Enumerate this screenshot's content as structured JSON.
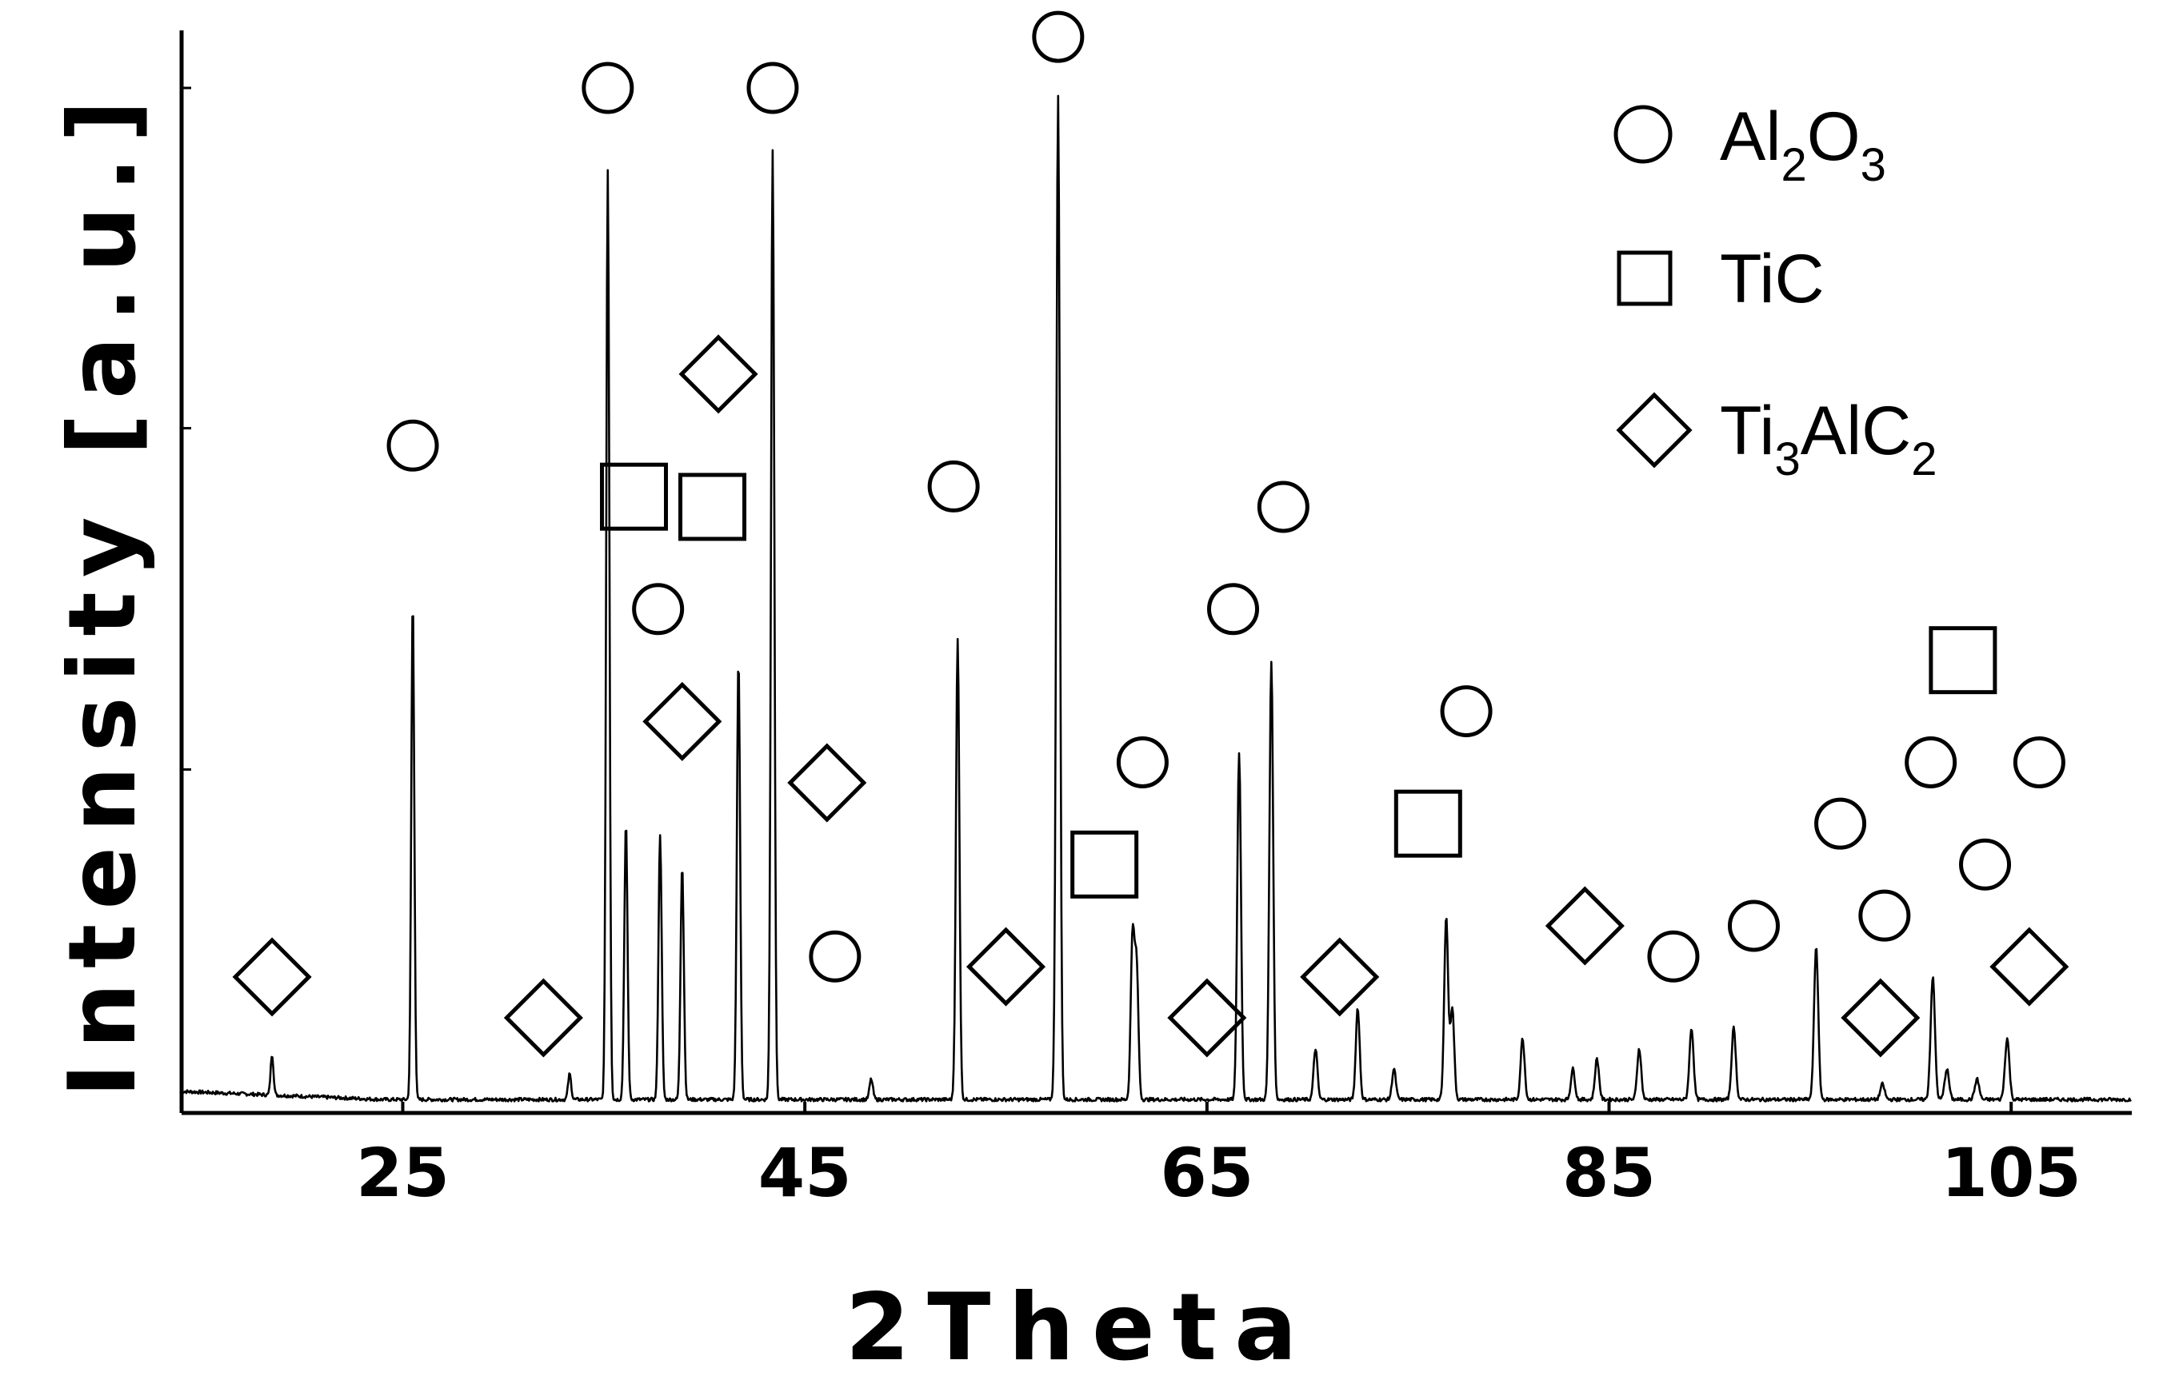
{
  "chart_data": {
    "type": "line",
    "title": "",
    "xlabel": "2Theta",
    "ylabel": "Intensity [a.u.]",
    "xlim": [
      14,
      111
    ],
    "ylim": [
      0,
      100
    ],
    "x_ticks": [
      25,
      45,
      65,
      85,
      105
    ],
    "x_tick_labels": [
      "25",
      "45",
      "65",
      "85",
      "105"
    ],
    "y_ticks": [
      0,
      33.3,
      66.7,
      100
    ],
    "y_tick_labels": [],
    "grid": false,
    "legend_position": "top-right",
    "legend": [
      {
        "symbol": "circle",
        "label": "Al2O3",
        "parts": [
          "Al",
          "2",
          "O",
          "3"
        ]
      },
      {
        "symbol": "square",
        "label": "TiC",
        "parts": [
          "TiC"
        ]
      },
      {
        "symbol": "diamond",
        "label": "Ti3AlC2",
        "parts": [
          "Ti",
          "3",
          "AlC",
          "2"
        ]
      }
    ],
    "series": [
      {
        "style": "line",
        "baseline": 1,
        "peaks": [
          {
            "x": 18.5,
            "y": 5
          },
          {
            "x": 25.5,
            "y": 50
          },
          {
            "x": 33.3,
            "y": 3.5
          },
          {
            "x": 35.2,
            "y": 92
          },
          {
            "x": 36.1,
            "y": 28
          },
          {
            "x": 37.8,
            "y": 27
          },
          {
            "x": 38.9,
            "y": 24
          },
          {
            "x": 41.7,
            "y": 44
          },
          {
            "x": 43.4,
            "y": 94
          },
          {
            "x": 48.3,
            "y": 3
          },
          {
            "x": 52.6,
            "y": 46
          },
          {
            "x": 57.5,
            "y": 5
          },
          {
            "x": 57.6,
            "y": 97
          },
          {
            "x": 61.3,
            "y": 17
          },
          {
            "x": 61.5,
            "y": 14
          },
          {
            "x": 66.6,
            "y": 35
          },
          {
            "x": 68.2,
            "y": 44
          },
          {
            "x": 70.4,
            "y": 6
          },
          {
            "x": 72.5,
            "y": 10
          },
          {
            "x": 74.3,
            "y": 4
          },
          {
            "x": 76.9,
            "y": 19
          },
          {
            "x": 77.2,
            "y": 10
          },
          {
            "x": 80.7,
            "y": 7
          },
          {
            "x": 83.2,
            "y": 4
          },
          {
            "x": 84.4,
            "y": 5
          },
          {
            "x": 86.5,
            "y": 6
          },
          {
            "x": 89.1,
            "y": 8
          },
          {
            "x": 91.2,
            "y": 8
          },
          {
            "x": 95.3,
            "y": 16
          },
          {
            "x": 98.6,
            "y": 2.5
          },
          {
            "x": 101.1,
            "y": 13
          },
          {
            "x": 101.8,
            "y": 4
          },
          {
            "x": 103.3,
            "y": 3
          },
          {
            "x": 104.8,
            "y": 7
          }
        ]
      }
    ],
    "phase_markers": [
      {
        "phase": "Ti3AlC2",
        "symbol": "diamond",
        "x": 18.5,
        "y": 13
      },
      {
        "phase": "Al2O3",
        "symbol": "circle",
        "x": 25.5,
        "y": 65
      },
      {
        "phase": "Ti3AlC2",
        "symbol": "diamond",
        "x": 32.0,
        "y": 9
      },
      {
        "phase": "Al2O3",
        "symbol": "circle",
        "x": 35.2,
        "y": 100
      },
      {
        "phase": "TiC",
        "symbol": "square",
        "x": 36.5,
        "y": 60
      },
      {
        "phase": "Al2O3",
        "symbol": "circle",
        "x": 37.7,
        "y": 49
      },
      {
        "phase": "Ti3AlC2",
        "symbol": "diamond",
        "x": 38.9,
        "y": 38
      },
      {
        "phase": "Ti3AlC2",
        "symbol": "diamond",
        "x": 40.7,
        "y": 72
      },
      {
        "phase": "TiC",
        "symbol": "square",
        "x": 40.4,
        "y": 59
      },
      {
        "phase": "Al2O3",
        "symbol": "circle",
        "x": 43.4,
        "y": 100
      },
      {
        "phase": "Ti3AlC2",
        "symbol": "diamond",
        "x": 46.1,
        "y": 32
      },
      {
        "phase": "Al2O3",
        "symbol": "circle",
        "x": 46.5,
        "y": 15
      },
      {
        "phase": "Al2O3",
        "symbol": "circle",
        "x": 52.4,
        "y": 61
      },
      {
        "phase": "Ti3AlC2",
        "symbol": "diamond",
        "x": 55.0,
        "y": 14
      },
      {
        "phase": "Al2O3",
        "symbol": "circle",
        "x": 57.6,
        "y": 105
      },
      {
        "phase": "TiC",
        "symbol": "square",
        "x": 59.9,
        "y": 24
      },
      {
        "phase": "Al2O3",
        "symbol": "circle",
        "x": 61.8,
        "y": 34
      },
      {
        "phase": "Ti3AlC2",
        "symbol": "diamond",
        "x": 65.0,
        "y": 9
      },
      {
        "phase": "Al2O3",
        "symbol": "circle",
        "x": 66.3,
        "y": 49
      },
      {
        "phase": "Al2O3",
        "symbol": "circle",
        "x": 68.8,
        "y": 59
      },
      {
        "phase": "Ti3AlC2",
        "symbol": "diamond",
        "x": 71.6,
        "y": 13
      },
      {
        "phase": "TiC",
        "symbol": "square",
        "x": 76.0,
        "y": 28
      },
      {
        "phase": "Al2O3",
        "symbol": "circle",
        "x": 77.9,
        "y": 39
      },
      {
        "phase": "Ti3AlC2",
        "symbol": "diamond",
        "x": 83.8,
        "y": 18
      },
      {
        "phase": "Al2O3",
        "symbol": "circle",
        "x": 88.2,
        "y": 15
      },
      {
        "phase": "Al2O3",
        "symbol": "circle",
        "x": 92.2,
        "y": 18
      },
      {
        "phase": "Al2O3",
        "symbol": "circle",
        "x": 96.5,
        "y": 28
      },
      {
        "phase": "Ti3AlC2",
        "symbol": "diamond",
        "x": 98.5,
        "y": 9
      },
      {
        "phase": "Al2O3",
        "symbol": "circle",
        "x": 98.7,
        "y": 19
      },
      {
        "phase": "Al2O3",
        "symbol": "circle",
        "x": 101.0,
        "y": 34
      },
      {
        "phase": "TiC",
        "symbol": "square",
        "x": 102.6,
        "y": 44
      },
      {
        "phase": "Al2O3",
        "symbol": "circle",
        "x": 103.7,
        "y": 24
      },
      {
        "phase": "Al2O3",
        "symbol": "circle",
        "x": 106.4,
        "y": 34
      },
      {
        "phase": "Ti3AlC2",
        "symbol": "diamond",
        "x": 105.9,
        "y": 14
      }
    ]
  }
}
